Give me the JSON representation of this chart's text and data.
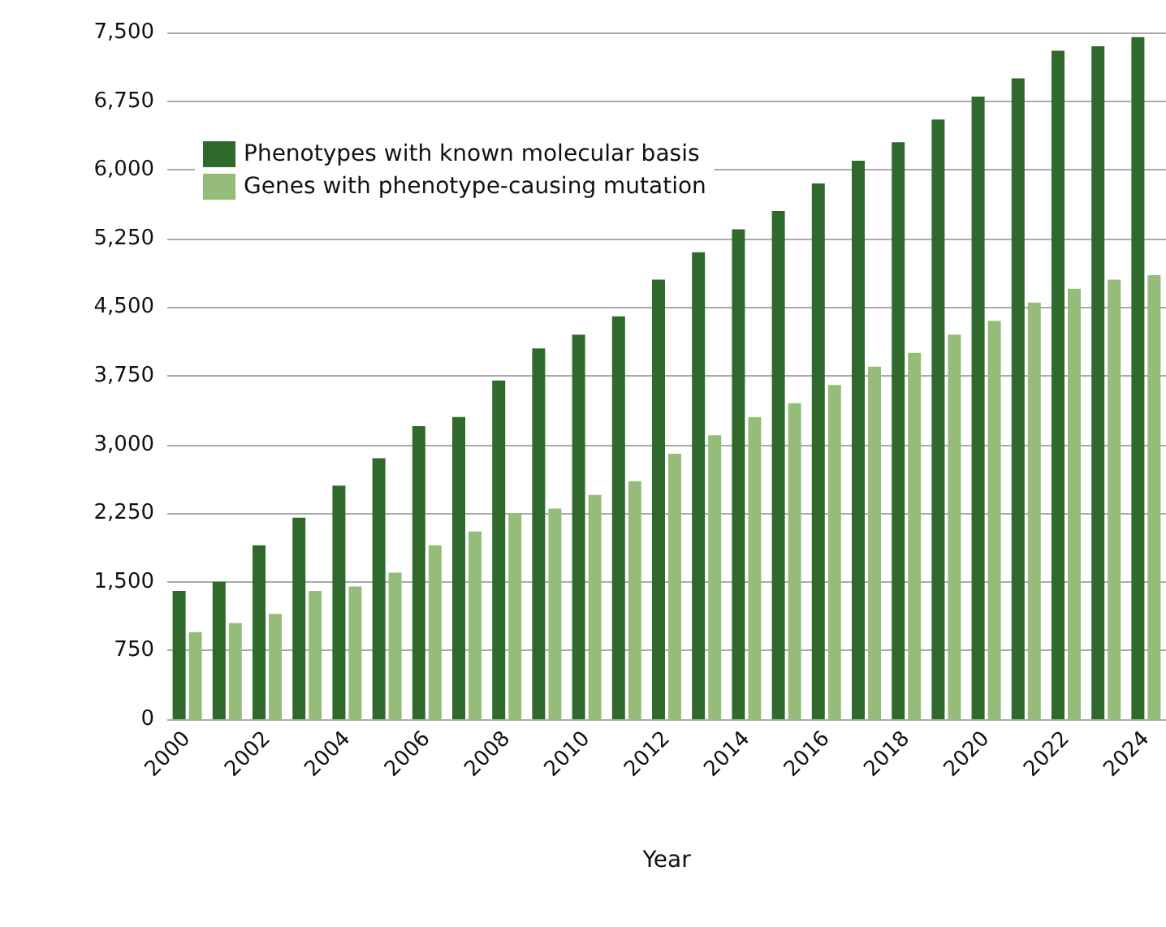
{
  "chart_data": {
    "type": "bar",
    "xlabel": "Year",
    "categories": [
      "2000",
      null,
      "2002",
      null,
      "2004",
      null,
      "2006",
      null,
      "2008",
      null,
      "2010",
      null,
      "2012",
      null,
      "2014",
      null,
      "2016",
      null,
      "2018",
      null,
      "2020",
      null,
      "2022",
      null,
      "2024"
    ],
    "series": [
      {
        "name": "Phenotypes with known molecular basis",
        "color": "#2f6a2c",
        "values": [
          1400,
          1500,
          1900,
          2200,
          2550,
          2850,
          3200,
          3300,
          3700,
          4050,
          4200,
          4400,
          4800,
          5100,
          5350,
          5550,
          5850,
          6100,
          6300,
          6550,
          6800,
          7000,
          7300,
          7350,
          7450
        ]
      },
      {
        "name": "Genes with phenotype-causing mutation",
        "color": "#95bd79",
        "values": [
          950,
          1050,
          1150,
          1400,
          1450,
          1600,
          1900,
          2050,
          2250,
          2300,
          2450,
          2600,
          2900,
          3100,
          3300,
          3450,
          3650,
          3850,
          4000,
          4200,
          4350,
          4550,
          4700,
          4800,
          4850
        ]
      }
    ],
    "ylim": [
      0,
      7500
    ],
    "yticks": [
      0,
      750,
      {
        "value": 1500,
        "label": "1,500"
      },
      {
        "value": 2250,
        "label": "2,250"
      },
      {
        "value": 3000,
        "label": "3,000"
      },
      {
        "value": 3750,
        "label": "3,750"
      },
      {
        "value": 4500,
        "label": "4,500"
      },
      {
        "value": 5250,
        "label": "5,250"
      },
      {
        "value": 6000,
        "label": "6,000"
      },
      {
        "value": 6750,
        "label": "6,750"
      },
      {
        "value": 7500,
        "label": "7,500"
      }
    ],
    "grid": "y",
    "legend": "top left"
  }
}
